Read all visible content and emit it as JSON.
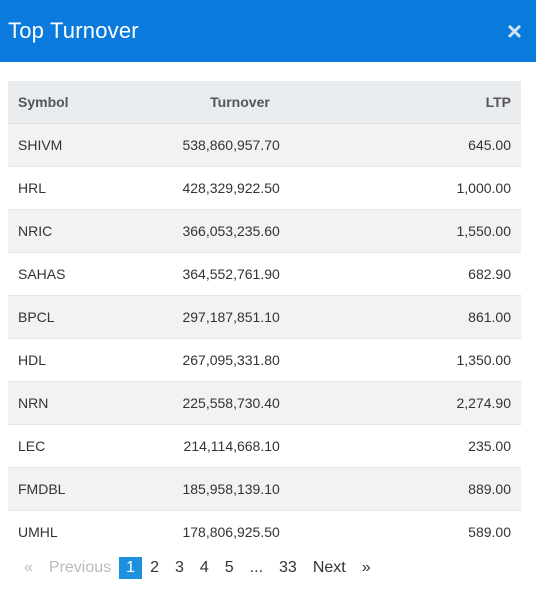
{
  "header": {
    "title": "Top Turnover",
    "close_label": "×"
  },
  "table": {
    "columns": [
      "Symbol",
      "Turnover",
      "LTP"
    ],
    "rows": [
      [
        "SHIVM",
        "538,860,957.70",
        "645.00"
      ],
      [
        "HRL",
        "428,329,922.50",
        "1,000.00"
      ],
      [
        "NRIC",
        "366,053,235.60",
        "1,550.00"
      ],
      [
        "SAHAS",
        "364,552,761.90",
        "682.90"
      ],
      [
        "BPCL",
        "297,187,851.10",
        "861.00"
      ],
      [
        "HDL",
        "267,095,331.80",
        "1,350.00"
      ],
      [
        "NRN",
        "225,558,730.40",
        "2,274.90"
      ],
      [
        "LEC",
        "214,114,668.10",
        "235.00"
      ],
      [
        "FMDBL",
        "185,958,139.10",
        "889.00"
      ],
      [
        "UMHL",
        "178,806,925.50",
        "589.00"
      ]
    ]
  },
  "pagination": {
    "prev_arrow": "«",
    "prev_label": "Previous",
    "pages": [
      "1",
      "2",
      "3",
      "4",
      "5"
    ],
    "ellipsis": "...",
    "last_page": "33",
    "next_label": "Next",
    "next_arrow": "»",
    "current": "1"
  }
}
